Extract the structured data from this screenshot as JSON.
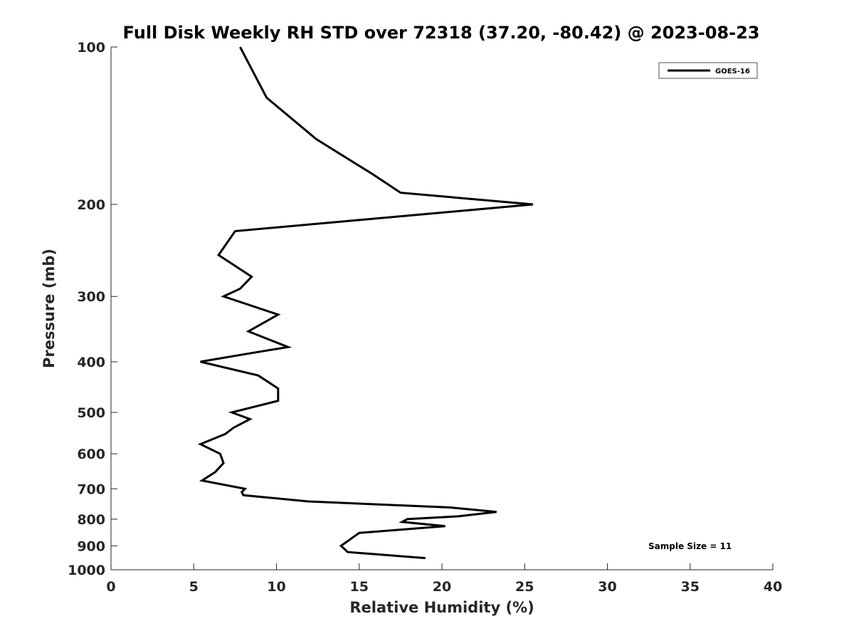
{
  "chart_data": {
    "type": "line",
    "title": "Full Disk Weekly RH STD over 72318 (37.20, -80.42) @ 2023-08-23",
    "xlabel": "Relative Humidity (%)",
    "ylabel": "Pressure (mb)",
    "xlim": [
      0,
      40
    ],
    "ylim": [
      100,
      1000
    ],
    "yscale": "log",
    "yreversed": true,
    "xticks": [
      0,
      5,
      10,
      15,
      20,
      25,
      30,
      35,
      40
    ],
    "yticks": [
      100,
      200,
      300,
      400,
      500,
      600,
      700,
      800,
      900,
      1000
    ],
    "grid": false,
    "legend_position": "top-right",
    "color": "#000000",
    "series": [
      {
        "name": "GOES-16",
        "x": [
          7.8,
          9.4,
          12.4,
          15.8,
          17.5,
          25.5,
          7.5,
          6.5,
          8.5,
          7.8,
          6.8,
          10.1,
          8.3,
          10.7,
          8.5,
          5.4,
          8.9,
          10.1,
          10.1,
          7.3,
          8.4,
          7.4,
          6.9,
          5.4,
          6.6,
          6.8,
          6.3,
          5.5,
          8.1,
          7.9,
          8.0,
          11.9,
          20.5,
          23.3,
          21.0,
          17.9,
          17.6,
          20.2,
          15.0,
          13.9,
          14.3,
          19.0
        ],
        "y": [
          100,
          125,
          150,
          175,
          190,
          200,
          225,
          250,
          275,
          290,
          300,
          325,
          350,
          375,
          385,
          400,
          425,
          450,
          475,
          500,
          515,
          535,
          550,
          575,
          600,
          625,
          650,
          675,
          700,
          710,
          720,
          740,
          760,
          775,
          790,
          800,
          810,
          825,
          850,
          900,
          925,
          950
        ]
      }
    ],
    "annotations": [
      "Sample Size = 11"
    ]
  }
}
